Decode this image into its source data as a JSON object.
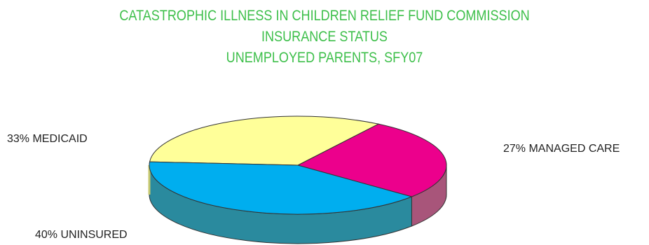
{
  "chart_data": {
    "type": "pie",
    "title_lines": [
      "CATASTROPHIC ILLNESS IN CHILDREN RELIEF FUND COMMISSION",
      "INSURANCE STATUS",
      "UNEMPLOYED PARENTS, SFY07"
    ],
    "slices": [
      {
        "label": "MEDICAID",
        "value": 33,
        "text": "33% MEDICAID",
        "color": "#ffff99",
        "side_color": "#c9c96f"
      },
      {
        "label": "MANAGED CARE",
        "value": 27,
        "text": "27% MANAGED CARE",
        "color": "#ec008c",
        "side_color": "#a8557a"
      },
      {
        "label": "UNINSURED",
        "value": 40,
        "text": "40% UNINSURED",
        "color": "#00aeef",
        "side_color": "#2a8a9e"
      }
    ],
    "title_color": "#3dbf4a"
  }
}
